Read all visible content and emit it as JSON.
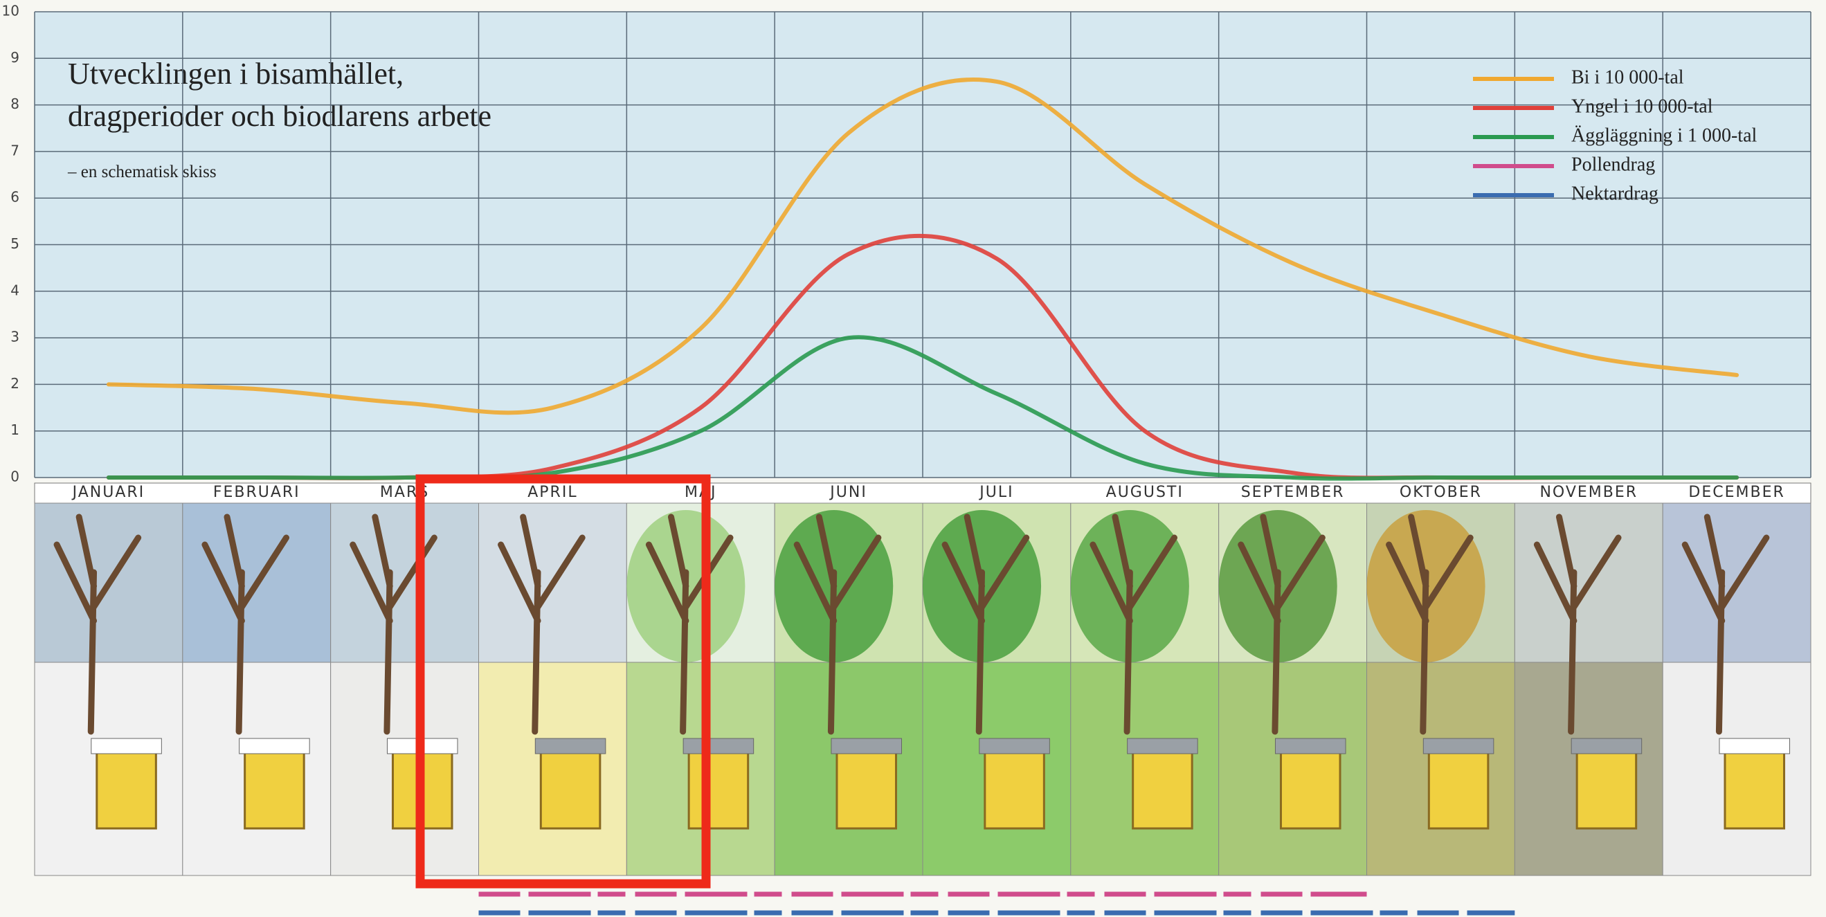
{
  "chart_data": {
    "type": "line",
    "title": [
      "Utvecklingen i bisamhället,",
      "dragperioder och biodlarens arbete"
    ],
    "subtitle": "– en schematisk skiss",
    "categories": [
      "JANUARI",
      "FEBRUARI",
      "MARS",
      "APRIL",
      "MAJ",
      "JUNI",
      "JULI",
      "AUGUSTI",
      "SEPTEMBER",
      "OKTOBER",
      "NOVEMBER",
      "DECEMBER"
    ],
    "series": [
      {
        "name": "Bi i 10 000-tal",
        "color": "#f0a830",
        "values": [
          2.0,
          1.9,
          1.6,
          1.5,
          3.2,
          7.4,
          8.5,
          6.3,
          4.6,
          3.5,
          2.6,
          2.2
        ]
      },
      {
        "name": "Yngel i 10 000-tal",
        "color": "#e0403a",
        "values": [
          0,
          0,
          0,
          0.2,
          1.5,
          4.8,
          4.7,
          1.0,
          0.1,
          0,
          0,
          0
        ]
      },
      {
        "name": "Äggläggning i 1 000-tal",
        "color": "#2a9a50",
        "values": [
          0,
          0,
          0,
          0.1,
          1.0,
          3.0,
          1.8,
          0.3,
          0,
          0,
          0,
          0
        ]
      }
    ],
    "bands": [
      {
        "name": "Pollendrag",
        "color": "#d04c8c",
        "from": "APRIL",
        "to": "SEPTEMBER"
      },
      {
        "name": "Nektardrag",
        "color": "#3a6cb0",
        "from": "APRIL",
        "to": "OKTOBER"
      }
    ],
    "ylim": [
      0,
      10
    ],
    "yticks": [
      0,
      1,
      2,
      3,
      4,
      5,
      6,
      7,
      8,
      9,
      10
    ],
    "grid": true
  }
}
